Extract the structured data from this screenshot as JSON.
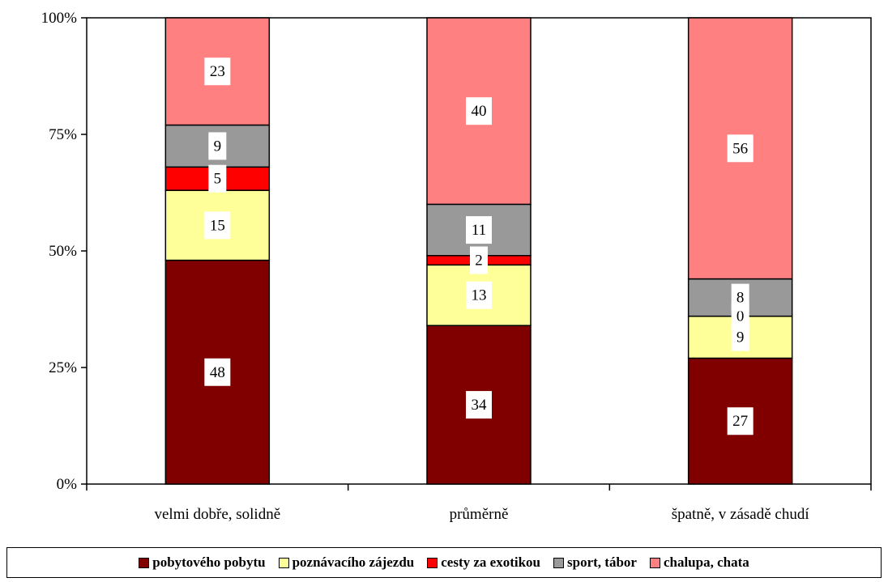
{
  "chart_data": {
    "type": "bar",
    "stacked": true,
    "percent": true,
    "categories": [
      "velmi dobře, solidně",
      "průměrně",
      "špatně, v zásadě chudí"
    ],
    "series": [
      {
        "name": "pobytového pobytu",
        "color": "#800000",
        "values": [
          48,
          34,
          27
        ]
      },
      {
        "name": "poznávacího zájezdu",
        "color": "#FFFF99",
        "values": [
          15,
          13,
          9
        ]
      },
      {
        "name": "cesty za exotikou",
        "color": "#FF0000",
        "values": [
          5,
          2,
          0
        ]
      },
      {
        "name": "sport, tábor",
        "color": "#999999",
        "values": [
          9,
          11,
          8
        ]
      },
      {
        "name": "chalupa, chata",
        "color": "#FF8080",
        "values": [
          23,
          40,
          56
        ]
      }
    ],
    "ylim": [
      0,
      100
    ],
    "yticks": [
      "0%",
      "25%",
      "50%",
      "75%",
      "100%"
    ],
    "grid": false,
    "legend_position": "bottom"
  }
}
